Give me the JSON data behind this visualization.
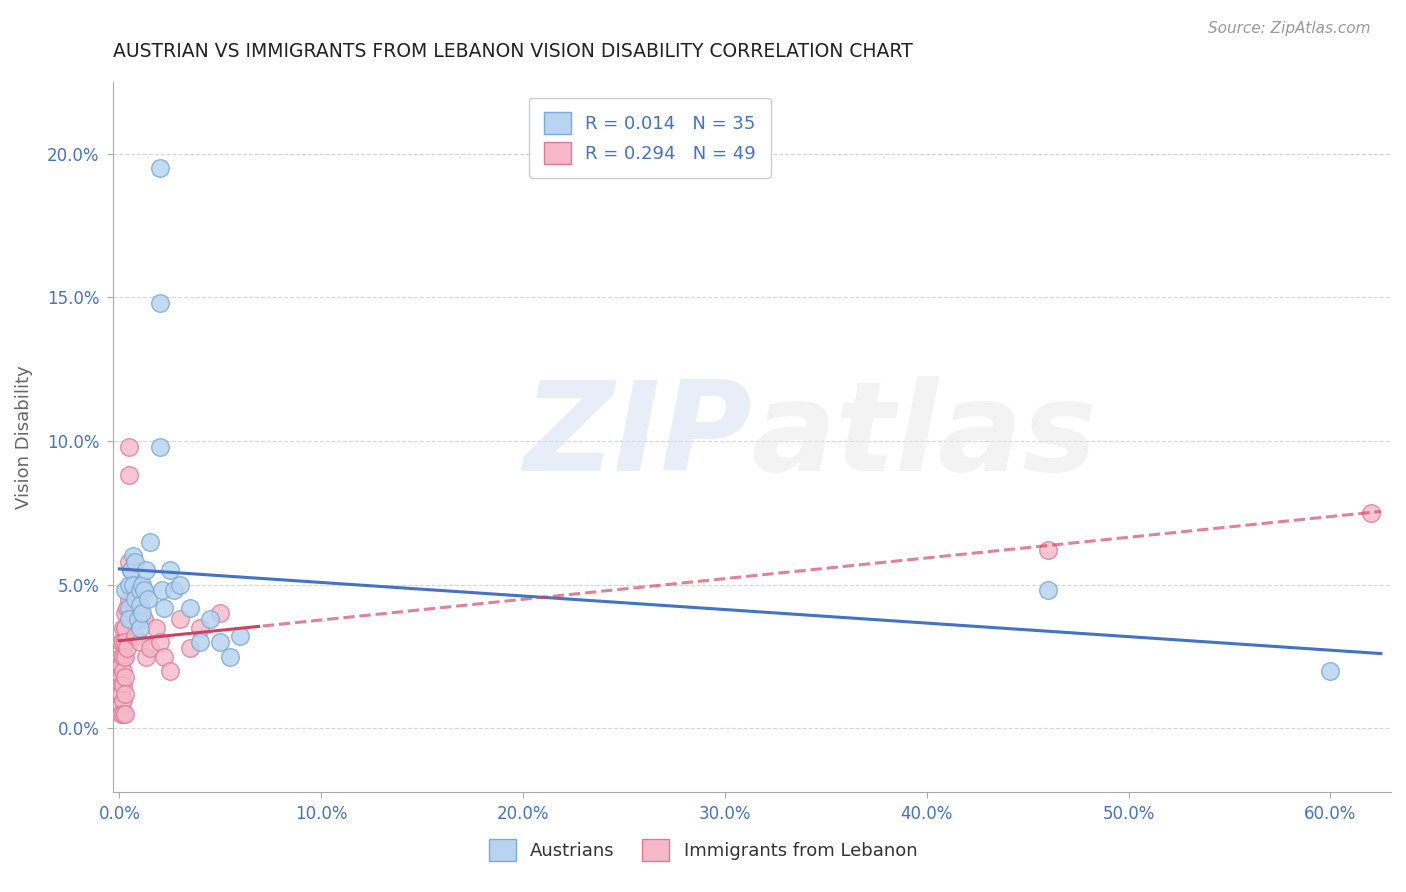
{
  "title": "AUSTRIAN VS IMMIGRANTS FROM LEBANON VISION DISABILITY CORRELATION CHART",
  "source": "Source: ZipAtlas.com",
  "ylabel": "Vision Disability",
  "xlim": [
    -0.003,
    0.63
  ],
  "ylim": [
    -0.022,
    0.225
  ],
  "xticks": [
    0.0,
    0.1,
    0.2,
    0.3,
    0.4,
    0.5,
    0.6
  ],
  "xticklabels": [
    "0.0%",
    "10.0%",
    "20.0%",
    "30.0%",
    "40.0%",
    "50.0%",
    "60.0%"
  ],
  "yticks": [
    0.0,
    0.05,
    0.1,
    0.15,
    0.2
  ],
  "yticklabels": [
    "0.0%",
    "5.0%",
    "10.0%",
    "15.0%",
    "20.0%"
  ],
  "background_color": "#ffffff",
  "grid_color": "#cccccc",
  "austrians_color": "#b8d4f0",
  "austrians_edge_color": "#7aaad8",
  "lebanon_color": "#f5b8c8",
  "lebanon_edge_color": "#e07898",
  "austrians_line_color": "#4472c4",
  "lebanon_line_color": "#d04060",
  "R_austrians": 0.014,
  "N_austrians": 35,
  "R_lebanon": 0.294,
  "N_lebanon": 49,
  "legend_label_austrians": "Austrians",
  "legend_label_lebanon": "Immigrants from Lebanon",
  "title_color": "#222222",
  "axis_label_color": "#666666",
  "tick_color": "#4472c4",
  "watermark_zip": "ZIP",
  "watermark_atlas": "atlas",
  "austrians_x": [
    0.02,
    0.02,
    0.003,
    0.005,
    0.005,
    0.005,
    0.006,
    0.007,
    0.007,
    0.008,
    0.008,
    0.009,
    0.01,
    0.01,
    0.01,
    0.011,
    0.011,
    0.012,
    0.013,
    0.014,
    0.015,
    0.02,
    0.021,
    0.022,
    0.025,
    0.027,
    0.03,
    0.035,
    0.04,
    0.045,
    0.05,
    0.055,
    0.06,
    0.46,
    0.6
  ],
  "austrians_y": [
    0.195,
    0.148,
    0.048,
    0.05,
    0.042,
    0.038,
    0.055,
    0.05,
    0.06,
    0.058,
    0.045,
    0.038,
    0.048,
    0.043,
    0.035,
    0.05,
    0.04,
    0.048,
    0.055,
    0.045,
    0.065,
    0.098,
    0.048,
    0.042,
    0.055,
    0.048,
    0.05,
    0.042,
    0.03,
    0.038,
    0.03,
    0.025,
    0.032,
    0.048,
    0.02
  ],
  "lebanon_x": [
    0.001,
    0.001,
    0.001,
    0.001,
    0.001,
    0.001,
    0.001,
    0.001,
    0.002,
    0.002,
    0.002,
    0.002,
    0.002,
    0.002,
    0.002,
    0.003,
    0.003,
    0.003,
    0.003,
    0.003,
    0.003,
    0.003,
    0.004,
    0.004,
    0.005,
    0.005,
    0.005,
    0.005,
    0.006,
    0.006,
    0.007,
    0.007,
    0.008,
    0.009,
    0.01,
    0.01,
    0.012,
    0.013,
    0.015,
    0.018,
    0.02,
    0.022,
    0.025,
    0.03,
    0.035,
    0.04,
    0.05,
    0.46,
    0.62
  ],
  "lebanon_y": [
    0.03,
    0.025,
    0.022,
    0.018,
    0.015,
    0.012,
    0.008,
    0.005,
    0.035,
    0.03,
    0.025,
    0.02,
    0.015,
    0.01,
    0.005,
    0.04,
    0.035,
    0.03,
    0.025,
    0.018,
    0.012,
    0.005,
    0.042,
    0.028,
    0.098,
    0.088,
    0.058,
    0.045,
    0.055,
    0.038,
    0.05,
    0.04,
    0.032,
    0.038,
    0.042,
    0.03,
    0.038,
    0.025,
    0.028,
    0.035,
    0.03,
    0.025,
    0.02,
    0.038,
    0.028,
    0.035,
    0.04,
    0.062,
    0.075
  ]
}
